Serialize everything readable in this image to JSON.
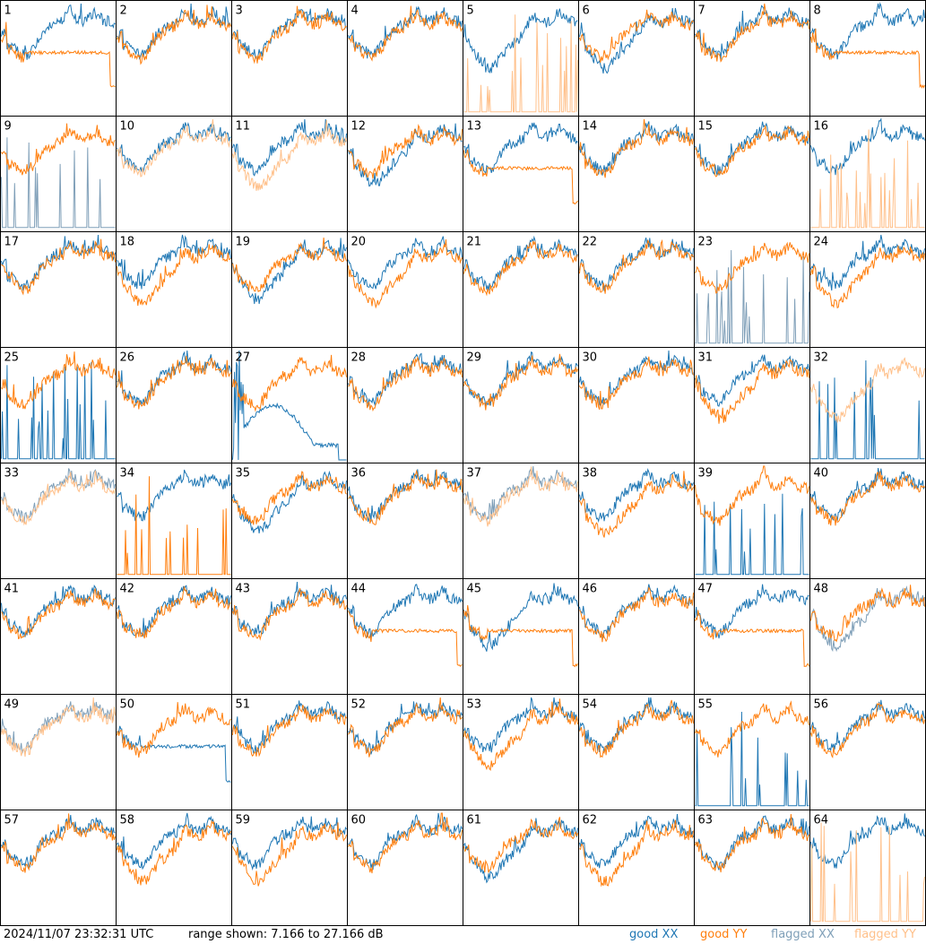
{
  "chart_data": {
    "type": "line",
    "grid_rows": 8,
    "grid_cols": 8,
    "ylim_db": [
      7.166,
      27.166
    ],
    "series_styles": {
      "good_xx": "#1f77b4",
      "good_yy": "#ff7f0e",
      "flagged_xx": "#7f9fb8",
      "flagged_yy": "#ffc08a"
    },
    "panels": [
      {
        "label": "1",
        "xx": "good",
        "yy": "good",
        "xx_shape": "normal",
        "yy_shape": "tail"
      },
      {
        "label": "2",
        "xx": "good",
        "yy": "good",
        "xx_shape": "normal",
        "yy_shape": "normal"
      },
      {
        "label": "3",
        "xx": "good",
        "yy": "good",
        "xx_shape": "normal",
        "yy_shape": "normal"
      },
      {
        "label": "4",
        "xx": "good",
        "yy": "good",
        "xx_shape": "normal",
        "yy_shape": "normal"
      },
      {
        "label": "5",
        "xx": "good",
        "yy": "flagged",
        "xx_shape": "deep",
        "yy_shape": "spikes"
      },
      {
        "label": "6",
        "xx": "good",
        "yy": "good",
        "xx_shape": "deep",
        "yy_shape": "normal"
      },
      {
        "label": "7",
        "xx": "good",
        "yy": "good",
        "xx_shape": "normal",
        "yy_shape": "normal"
      },
      {
        "label": "8",
        "xx": "good",
        "yy": "good",
        "xx_shape": "normal",
        "yy_shape": "tail"
      },
      {
        "label": "9",
        "xx": "flagged",
        "yy": "good",
        "xx_shape": "spikes",
        "yy_shape": "normal"
      },
      {
        "label": "10",
        "xx": "good",
        "yy": "flagged",
        "xx_shape": "normal",
        "yy_shape": "normal"
      },
      {
        "label": "11",
        "xx": "good",
        "yy": "flagged",
        "xx_shape": "normal",
        "yy_shape": "deep"
      },
      {
        "label": "12",
        "xx": "good",
        "yy": "good",
        "xx_shape": "deep",
        "yy_shape": "normal"
      },
      {
        "label": "13",
        "xx": "good",
        "yy": "good",
        "xx_shape": "normal",
        "yy_shape": "tail"
      },
      {
        "label": "14",
        "xx": "good",
        "yy": "good",
        "xx_shape": "normal",
        "yy_shape": "normal"
      },
      {
        "label": "15",
        "xx": "good",
        "yy": "good",
        "xx_shape": "normal",
        "yy_shape": "normal"
      },
      {
        "label": "16",
        "xx": "good",
        "yy": "flagged",
        "xx_shape": "normal",
        "yy_shape": "spikes"
      },
      {
        "label": "17",
        "xx": "good",
        "yy": "good",
        "xx_shape": "normal",
        "yy_shape": "normal"
      },
      {
        "label": "18",
        "xx": "good",
        "yy": "good",
        "xx_shape": "normal",
        "yy_shape": "deep"
      },
      {
        "label": "19",
        "xx": "good",
        "yy": "good",
        "xx_shape": "deep",
        "yy_shape": "normal"
      },
      {
        "label": "20",
        "xx": "good",
        "yy": "good",
        "xx_shape": "normal",
        "yy_shape": "deep"
      },
      {
        "label": "21",
        "xx": "good",
        "yy": "good",
        "xx_shape": "normal",
        "yy_shape": "normal"
      },
      {
        "label": "22",
        "xx": "good",
        "yy": "good",
        "xx_shape": "normal",
        "yy_shape": "normal"
      },
      {
        "label": "23",
        "xx": "flagged",
        "yy": "good",
        "xx_shape": "spikes",
        "yy_shape": "normal"
      },
      {
        "label": "24",
        "xx": "good",
        "yy": "good",
        "xx_shape": "normal",
        "yy_shape": "deep"
      },
      {
        "label": "25",
        "xx": "good",
        "yy": "good",
        "xx_shape": "spikes",
        "yy_shape": "normal"
      },
      {
        "label": "26",
        "xx": "good",
        "yy": "good",
        "xx_shape": "normal",
        "yy_shape": "normal"
      },
      {
        "label": "27",
        "xx": "good",
        "yy": "good",
        "xx_shape": "broken",
        "yy_shape": "normal"
      },
      {
        "label": "28",
        "xx": "good",
        "yy": "good",
        "xx_shape": "normal",
        "yy_shape": "normal"
      },
      {
        "label": "29",
        "xx": "good",
        "yy": "good",
        "xx_shape": "normal",
        "yy_shape": "normal"
      },
      {
        "label": "30",
        "xx": "good",
        "yy": "good",
        "xx_shape": "normal",
        "yy_shape": "normal"
      },
      {
        "label": "31",
        "xx": "good",
        "yy": "good",
        "xx_shape": "normal",
        "yy_shape": "deep"
      },
      {
        "label": "32",
        "xx": "good",
        "yy": "flagged",
        "xx_shape": "spikes",
        "yy_shape": "deep"
      },
      {
        "label": "33",
        "xx": "flagged",
        "yy": "flagged",
        "xx_shape": "normal",
        "yy_shape": "normal"
      },
      {
        "label": "34",
        "xx": "good",
        "yy": "good",
        "xx_shape": "normal",
        "yy_shape": "spikes"
      },
      {
        "label": "35",
        "xx": "good",
        "yy": "good",
        "xx_shape": "deep",
        "yy_shape": "normal"
      },
      {
        "label": "36",
        "xx": "good",
        "yy": "good",
        "xx_shape": "normal",
        "yy_shape": "normal"
      },
      {
        "label": "37",
        "xx": "flagged",
        "yy": "flagged",
        "xx_shape": "normal",
        "yy_shape": "normal"
      },
      {
        "label": "38",
        "xx": "good",
        "yy": "good",
        "xx_shape": "normal",
        "yy_shape": "deep"
      },
      {
        "label": "39",
        "xx": "good",
        "yy": "good",
        "xx_shape": "spikes",
        "yy_shape": "normal"
      },
      {
        "label": "40",
        "xx": "good",
        "yy": "good",
        "xx_shape": "normal",
        "yy_shape": "normal"
      },
      {
        "label": "41",
        "xx": "good",
        "yy": "good",
        "xx_shape": "normal",
        "yy_shape": "normal"
      },
      {
        "label": "42",
        "xx": "good",
        "yy": "good",
        "xx_shape": "normal",
        "yy_shape": "normal"
      },
      {
        "label": "43",
        "xx": "good",
        "yy": "good",
        "xx_shape": "normal",
        "yy_shape": "normal"
      },
      {
        "label": "44",
        "xx": "good",
        "yy": "good",
        "xx_shape": "normal",
        "yy_shape": "tail"
      },
      {
        "label": "45",
        "xx": "good",
        "yy": "good",
        "xx_shape": "deep",
        "yy_shape": "tail"
      },
      {
        "label": "46",
        "xx": "good",
        "yy": "good",
        "xx_shape": "normal",
        "yy_shape": "normal"
      },
      {
        "label": "47",
        "xx": "good",
        "yy": "good",
        "xx_shape": "normal",
        "yy_shape": "tail"
      },
      {
        "label": "48",
        "xx": "flagged",
        "yy": "good",
        "xx_shape": "deep",
        "yy_shape": "normal"
      },
      {
        "label": "49",
        "xx": "flagged",
        "yy": "flagged",
        "xx_shape": "normal",
        "yy_shape": "normal"
      },
      {
        "label": "50",
        "xx": "good",
        "yy": "good",
        "xx_shape": "tail",
        "yy_shape": "normal"
      },
      {
        "label": "51",
        "xx": "good",
        "yy": "good",
        "xx_shape": "normal",
        "yy_shape": "normal"
      },
      {
        "label": "52",
        "xx": "good",
        "yy": "good",
        "xx_shape": "normal",
        "yy_shape": "normal"
      },
      {
        "label": "53",
        "xx": "good",
        "yy": "good",
        "xx_shape": "normal",
        "yy_shape": "deep"
      },
      {
        "label": "54",
        "xx": "good",
        "yy": "good",
        "xx_shape": "normal",
        "yy_shape": "normal"
      },
      {
        "label": "55",
        "xx": "good",
        "yy": "good",
        "xx_shape": "spikes",
        "yy_shape": "normal"
      },
      {
        "label": "56",
        "xx": "good",
        "yy": "good",
        "xx_shape": "normal",
        "yy_shape": "normal"
      },
      {
        "label": "57",
        "xx": "good",
        "yy": "good",
        "xx_shape": "normal",
        "yy_shape": "normal"
      },
      {
        "label": "58",
        "xx": "good",
        "yy": "good",
        "xx_shape": "normal",
        "yy_shape": "deep"
      },
      {
        "label": "59",
        "xx": "good",
        "yy": "good",
        "xx_shape": "normal",
        "yy_shape": "deep"
      },
      {
        "label": "60",
        "xx": "good",
        "yy": "good",
        "xx_shape": "normal",
        "yy_shape": "normal"
      },
      {
        "label": "61",
        "xx": "good",
        "yy": "good",
        "xx_shape": "deep",
        "yy_shape": "normal"
      },
      {
        "label": "62",
        "xx": "good",
        "yy": "good",
        "xx_shape": "normal",
        "yy_shape": "deep"
      },
      {
        "label": "63",
        "xx": "good",
        "yy": "good",
        "xx_shape": "normal",
        "yy_shape": "normal"
      },
      {
        "label": "64",
        "xx": "good",
        "yy": "flagged",
        "xx_shape": "normal",
        "yy_shape": "spikes"
      }
    ]
  },
  "footer": {
    "timestamp": "2024/11/07 23:32:31 UTC",
    "range_text": "range shown: 7.166 to 27.166 dB",
    "legend": {
      "good_xx": "good XX",
      "good_yy": "good YY",
      "flagged_xx": "flagged XX",
      "flagged_yy": "flagged YY"
    }
  }
}
